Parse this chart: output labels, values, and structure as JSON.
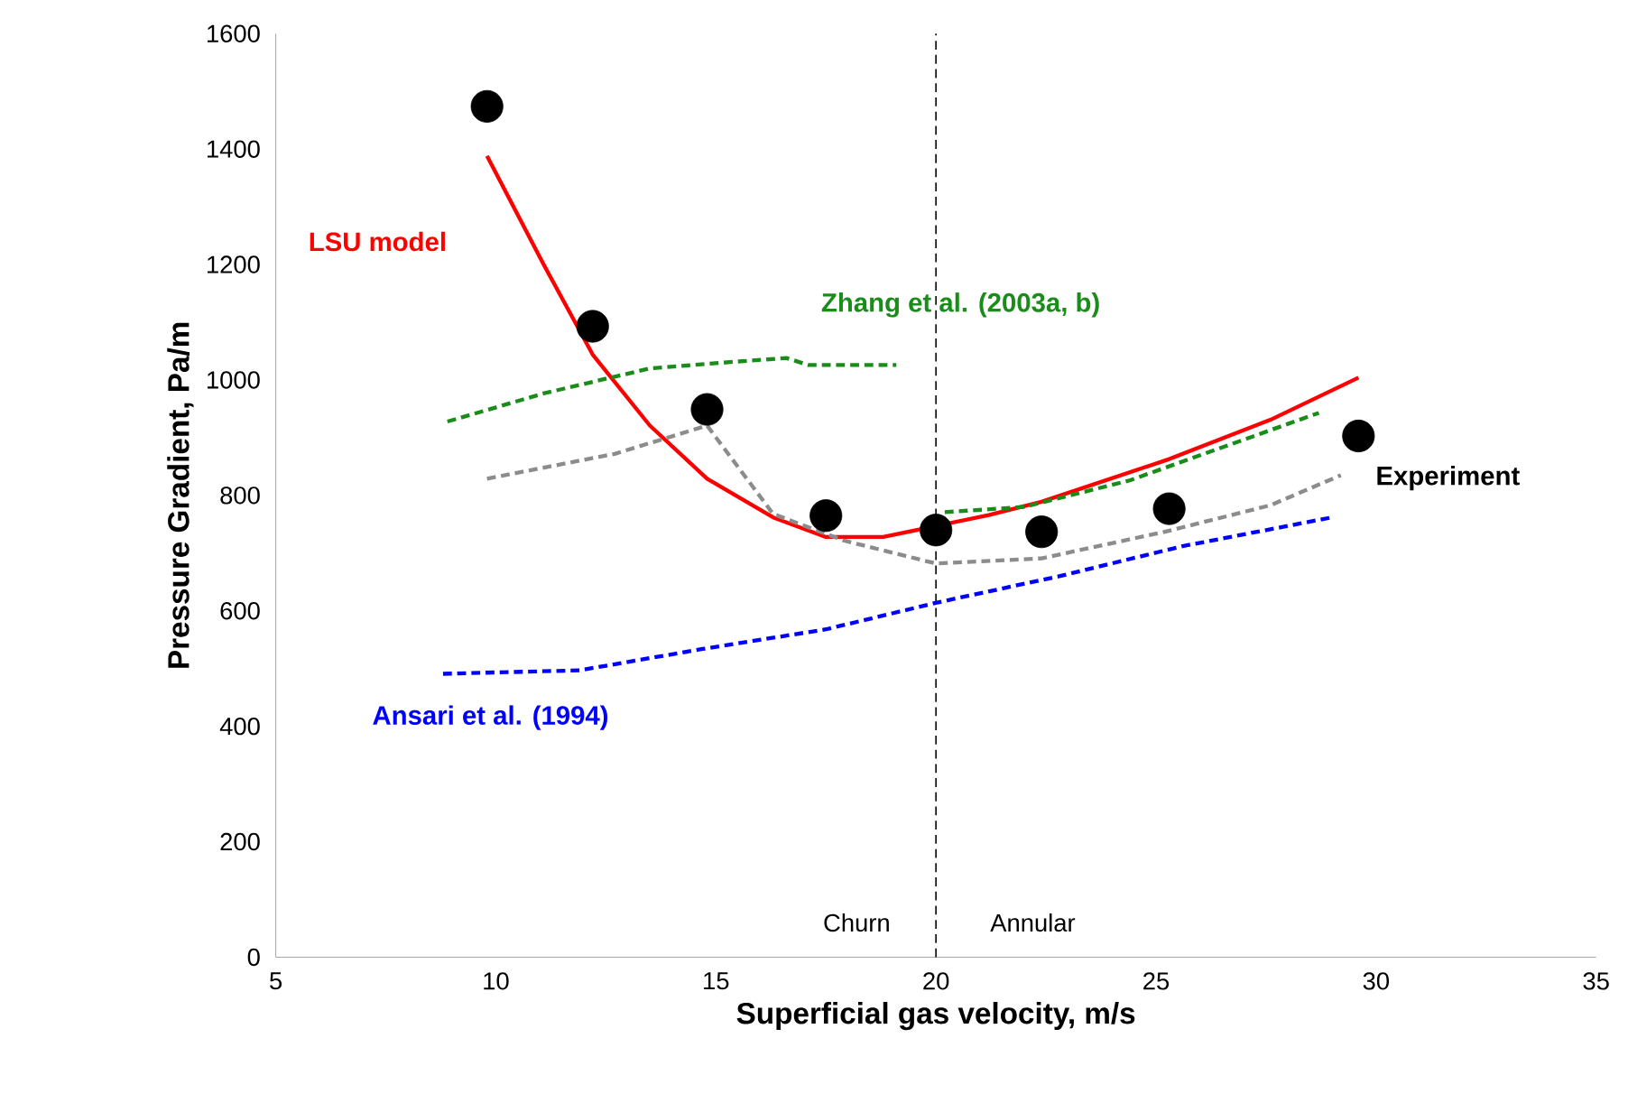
{
  "chart_data": {
    "type": "line",
    "xlabel": "Superficial gas velocity, m/s",
    "ylabel": "Pressure Gradient,  Pa/m",
    "xlim": [
      5,
      35
    ],
    "ylim": [
      0,
      1600
    ],
    "xticks": [
      5,
      10,
      15,
      20,
      25,
      30,
      35
    ],
    "yticks": [
      0,
      200,
      400,
      600,
      800,
      1000,
      1200,
      1400,
      1600
    ],
    "grid": false,
    "series": [
      {
        "name": "LSU model",
        "color": "#ff0000",
        "line_style": "solid",
        "x": [
          9.8,
          11.1,
          12.2,
          13.5,
          14.8,
          16.3,
          17.5,
          18.8,
          21.2,
          22.4,
          25.3,
          27.6,
          29.6
        ],
        "values": [
          1388,
          1198,
          1044,
          921,
          829,
          762,
          728,
          728,
          766,
          789,
          863,
          931,
          1004
        ]
      },
      {
        "name": "Zhang et al. (2003a, b)",
        "color": "#1a8c1a",
        "line_style": "dashed",
        "x": [
          8.9,
          11.1,
          13.5,
          15.5,
          16.6,
          17.1,
          19.1,
          19.6,
          20.2,
          22.0,
          24.4,
          28.7
        ],
        "values": [
          928,
          977,
          1020,
          1032,
          1038,
          1026,
          1026,
          null,
          771,
          780,
          826,
          943
        ]
      },
      {
        "color": "#8c8c8c",
        "line_style": "dashed",
        "x": [
          9.8,
          12.7,
          14.8,
          16.3,
          17.9,
          20.0,
          22.4,
          25.2,
          27.6,
          29.2
        ],
        "values": [
          829,
          872,
          921,
          768,
          722,
          682,
          691,
          737,
          783,
          835
        ]
      },
      {
        "name": "Ansari et al. (1994)",
        "color": "#0000ff",
        "line_style": "dashed",
        "x": [
          8.8,
          11.9,
          14.7,
          17.5,
          20.0,
          22.8,
          25.6,
          29.0
        ],
        "values": [
          491,
          497,
          534,
          568,
          614,
          660,
          712,
          762
        ]
      },
      {
        "name": "Experiment",
        "type": "scatter",
        "marker": "circle",
        "color": "#000000",
        "x": [
          9.8,
          12.2,
          14.8,
          17.5,
          20.0,
          22.4,
          25.3,
          29.6
        ],
        "values": [
          1474,
          1093,
          949,
          765,
          740,
          737,
          777,
          903
        ]
      }
    ],
    "ref_lines": [
      {
        "axis": "x",
        "value": 20,
        "color": "#000000",
        "line_style": "dashed"
      }
    ],
    "annotations": [
      "Churn",
      "Annular"
    ]
  }
}
